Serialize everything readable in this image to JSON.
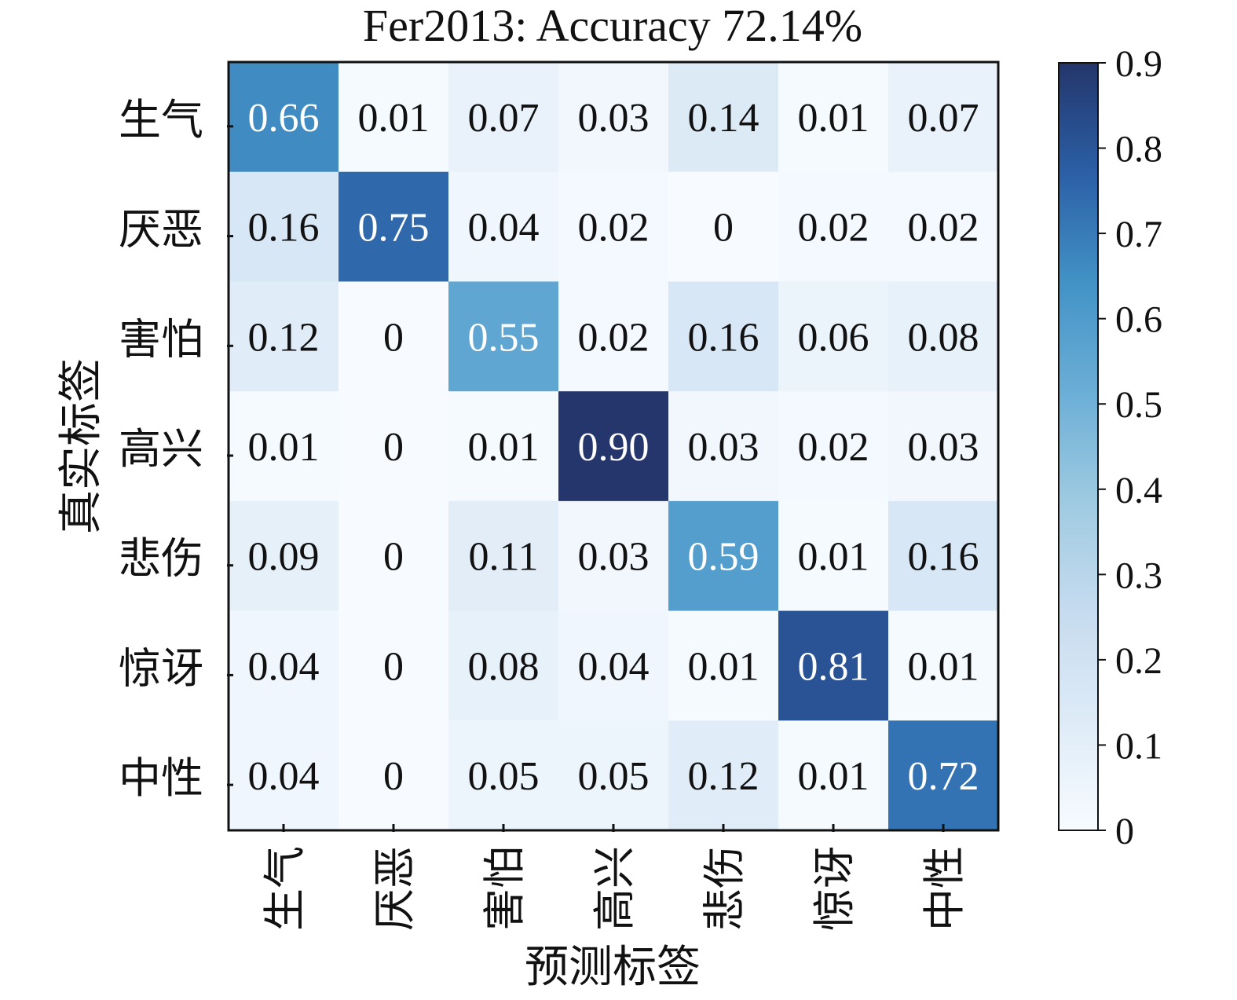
{
  "chart_data": {
    "type": "heatmap",
    "title": "Fer2013: Accuracy 72.14%",
    "xlabel": "预测标签",
    "ylabel": "真实标签",
    "row_labels": [
      "生气",
      "厌恶",
      "害怕",
      "高兴",
      "悲伤",
      "惊讶",
      "中性"
    ],
    "col_labels": [
      "生气",
      "厌恶",
      "害怕",
      "高兴",
      "悲伤",
      "惊讶",
      "中性"
    ],
    "values": [
      [
        "0.66",
        "0.01",
        "0.07",
        "0.03",
        "0.14",
        "0.01",
        "0.07"
      ],
      [
        "0.16",
        "0.75",
        "0.04",
        "0.02",
        "0",
        "0.02",
        "0.02"
      ],
      [
        "0.12",
        "0",
        "0.55",
        "0.02",
        "0.16",
        "0.06",
        "0.08"
      ],
      [
        "0.01",
        "0",
        "0.01",
        "0.90",
        "0.03",
        "0.02",
        "0.03"
      ],
      [
        "0.09",
        "0",
        "0.11",
        "0.03",
        "0.59",
        "0.01",
        "0.16"
      ],
      [
        "0.04",
        "0",
        "0.08",
        "0.04",
        "0.01",
        "0.81",
        "0.01"
      ],
      [
        "0.04",
        "0",
        "0.05",
        "0.05",
        "0.12",
        "0.01",
        "0.72"
      ]
    ],
    "colorbar": {
      "range": [
        0,
        0.9
      ],
      "ticks": [
        "0",
        "0.1",
        "0.2",
        "0.3",
        "0.4",
        "0.5",
        "0.6",
        "0.7",
        "0.8",
        "0.9"
      ]
    },
    "colormap": [
      "#f7fbff",
      "#deebf7",
      "#c6dbef",
      "#9ecae1",
      "#6baed6",
      "#4292c6",
      "#2b5fa6",
      "#24366b"
    ]
  }
}
